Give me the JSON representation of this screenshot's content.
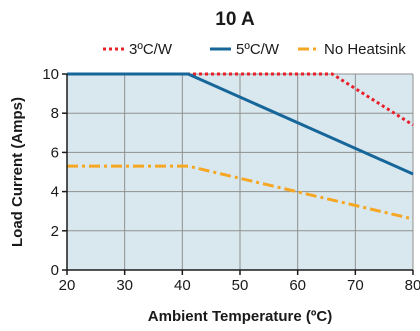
{
  "chart_data": {
    "type": "line",
    "title": "10 A",
    "xlabel": "Ambient Temperature (ºC)",
    "ylabel": "Load Current (Amps)",
    "xlim": [
      20,
      80
    ],
    "ylim": [
      0,
      10
    ],
    "xticks": [
      20,
      30,
      40,
      50,
      60,
      70,
      80
    ],
    "yticks": [
      0,
      2,
      4,
      6,
      8,
      10
    ],
    "grid": true,
    "plot_background": "#d9e8ee",
    "legend_position": "top",
    "series": [
      {
        "name": "3ºC/W",
        "color": "#e8202a",
        "style": "dotted",
        "points": [
          [
            20,
            10.0
          ],
          [
            66,
            10.0
          ],
          [
            80,
            7.4
          ]
        ]
      },
      {
        "name": "5ºC/W",
        "color": "#17669a",
        "style": "solid",
        "points": [
          [
            20,
            10.0
          ],
          [
            41,
            10.0
          ],
          [
            80,
            4.9
          ]
        ]
      },
      {
        "name": "No Heatsink",
        "color": "#f5a623",
        "style": "dashdot",
        "points": [
          [
            20,
            5.3
          ],
          [
            41,
            5.3
          ],
          [
            80,
            2.6
          ]
        ]
      }
    ]
  }
}
